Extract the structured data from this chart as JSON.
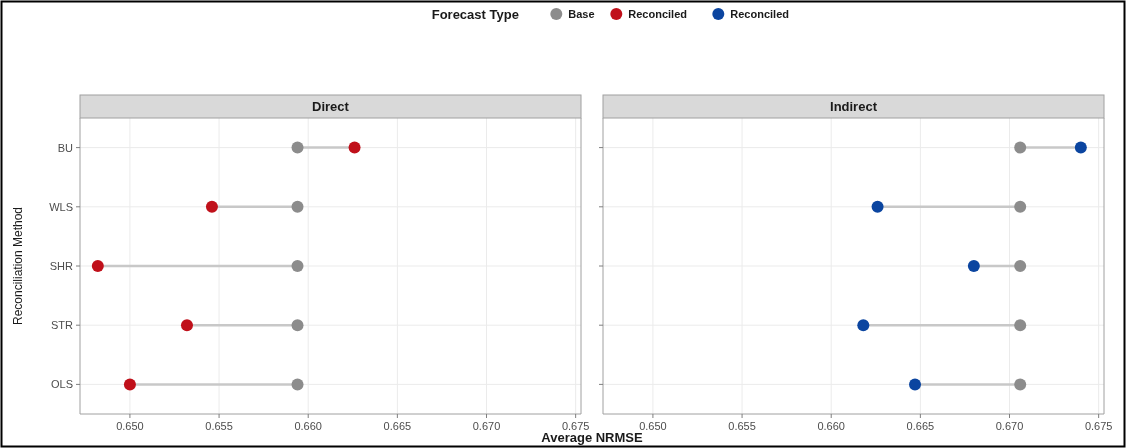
{
  "chart_data": [
    {
      "type": "scatter",
      "title": "Direct",
      "xlabel": "Average NRMSE",
      "ylabel": "Reconciliation Method",
      "legend_title": "Forecast Type",
      "legend": "top",
      "grid": true,
      "marker": "circle",
      "orientation": "horizontal",
      "categories": [
        "BU",
        "WLS",
        "SHR",
        "STR",
        "OLS"
      ],
      "xlim": [
        0.6472,
        0.6753
      ],
      "xticks": [
        {
          "value": 0.65,
          "label": "0.650"
        },
        {
          "value": 0.655,
          "label": "0.655"
        },
        {
          "value": 0.66,
          "label": "0.660"
        },
        {
          "value": 0.665,
          "label": "0.665"
        },
        {
          "value": 0.67,
          "label": "0.670"
        },
        {
          "value": 0.675,
          "label": "0.675"
        }
      ],
      "series": [
        {
          "name": "Base",
          "color": "#8c8c8c",
          "values": [
            0.6594,
            0.6594,
            0.6594,
            0.6594,
            0.6594
          ]
        },
        {
          "name": "Reconciled",
          "color": "#c0101a",
          "values": [
            0.6626,
            0.6546,
            0.6482,
            0.6532,
            0.65
          ]
        }
      ]
    },
    {
      "type": "scatter",
      "title": "Indirect",
      "legend": "top",
      "grid": true,
      "marker": "circle",
      "orientation": "horizontal",
      "tick_labels": "x",
      "categories": [
        null,
        null,
        null,
        null,
        null
      ],
      "xlim": [
        0.6472,
        0.6753
      ],
      "xticks": [
        {
          "value": 0.65,
          "label": "0.650"
        },
        {
          "value": 0.655,
          "label": "0.655"
        },
        {
          "value": 0.66,
          "label": "0.660"
        },
        {
          "value": 0.665,
          "label": "0.665"
        },
        {
          "value": 0.67,
          "label": "0.670"
        },
        {
          "value": 0.675,
          "label": "0.675"
        }
      ],
      "series": [
        {
          "name": "Base",
          "color": "#8c8c8c",
          "values": [
            0.6706,
            0.6706,
            0.6706,
            0.6706,
            0.6706
          ]
        },
        {
          "name": "Reconciled",
          "color": "#0b45a0",
          "values": [
            0.674,
            0.6626,
            0.668,
            0.6618,
            0.6647
          ]
        }
      ]
    }
  ]
}
